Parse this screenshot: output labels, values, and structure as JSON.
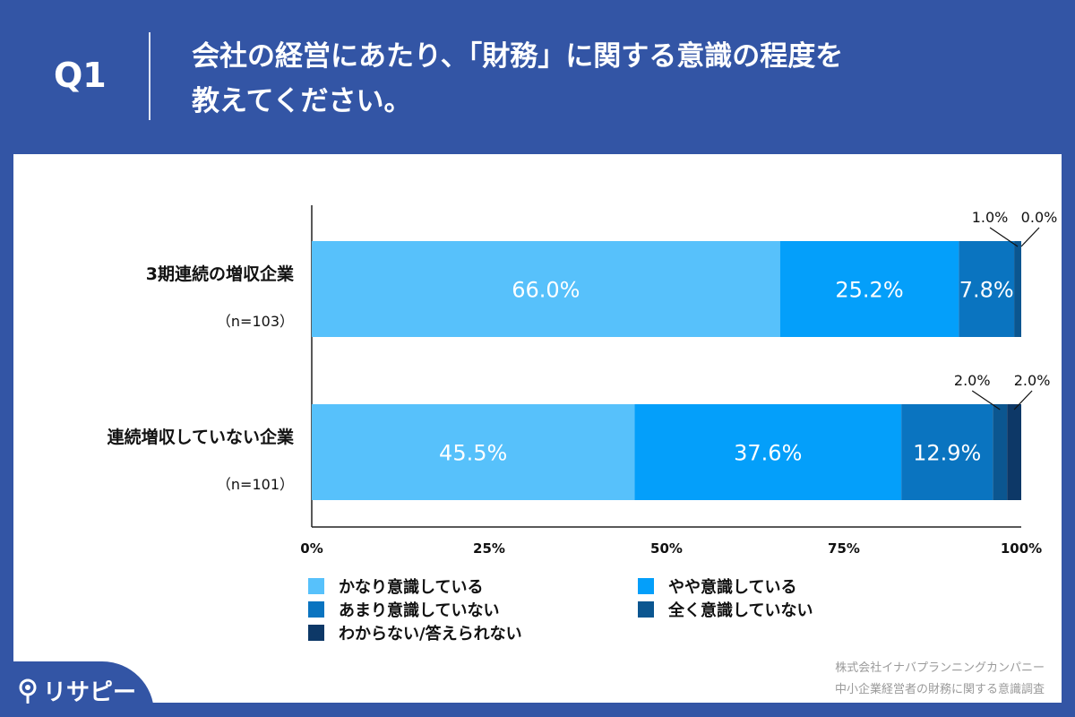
{
  "header": {
    "q_label": "Q1",
    "question_line1": "会社の経営にあたり、「財務」に関する意識の程度を",
    "question_line2": "教えてください。"
  },
  "chart_data": {
    "type": "bar",
    "orientation": "horizontal-stacked-100",
    "categories": [
      {
        "label": "3期連続の増収企業",
        "sublabel": "（n=103）"
      },
      {
        "label": "連続増収していない企業",
        "sublabel": "（n=101）"
      }
    ],
    "series": [
      {
        "name": "かなり意識している",
        "color": "#57c1fb",
        "values": [
          66.0,
          45.5
        ],
        "labels": [
          "66.0%",
          "45.5%"
        ]
      },
      {
        "name": "やや意識している",
        "color": "#049ffa",
        "values": [
          25.2,
          37.6
        ],
        "labels": [
          "25.2%",
          "37.6%"
        ]
      },
      {
        "name": "あまり意識していない",
        "color": "#0a74c0",
        "values": [
          7.8,
          12.9
        ],
        "labels": [
          "7.8%",
          "12.9%"
        ]
      },
      {
        "name": "全く意識していない",
        "color": "#0b5690",
        "values": [
          1.0,
          2.0
        ],
        "labels": [
          "1.0%",
          "2.0%"
        ]
      },
      {
        "name": "わからない/答えられない",
        "color": "#0d3867",
        "values": [
          0.0,
          2.0
        ],
        "labels": [
          "0.0%",
          "2.0%"
        ]
      }
    ],
    "xlim": [
      0,
      100
    ],
    "xticks": [
      "0%",
      "25%",
      "50%",
      "75%",
      "100%"
    ],
    "legend_position": "bottom"
  },
  "source": {
    "line1": "株式会社イナバプランニングカンパニー",
    "line2": "中小企業経営者の財務に関する意識調査"
  },
  "logo": {
    "text": "リサピー",
    "icon": "map-pin-icon"
  }
}
